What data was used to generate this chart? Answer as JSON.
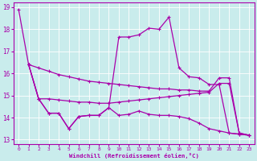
{
  "xlabel": "Windchill (Refroidissement éolien,°C)",
  "xlim": [
    -0.5,
    23.5
  ],
  "ylim": [
    12.8,
    19.2
  ],
  "yticks": [
    13,
    14,
    15,
    16,
    17,
    18,
    19
  ],
  "xticks": [
    0,
    1,
    2,
    3,
    4,
    5,
    6,
    7,
    8,
    9,
    10,
    11,
    12,
    13,
    14,
    15,
    16,
    17,
    18,
    19,
    20,
    21,
    22,
    23
  ],
  "bg_color": "#c9ecec",
  "line_color": "#aa00aa",
  "grid_color": "#ffffff",
  "curve_A_x": [
    0,
    1,
    2,
    3,
    4,
    5,
    6,
    7,
    8,
    9,
    10,
    11,
    12,
    13,
    14,
    15,
    16,
    17,
    18,
    19,
    20,
    21,
    22,
    23
  ],
  "curve_A_y": [
    18.9,
    16.4,
    16.25,
    16.1,
    15.95,
    15.85,
    15.75,
    15.65,
    15.6,
    15.55,
    15.5,
    15.45,
    15.4,
    15.35,
    15.3,
    15.3,
    15.25,
    15.25,
    15.2,
    15.2,
    15.8,
    15.8,
    13.3,
    13.2
  ],
  "curve_B_x": [
    1,
    2,
    3,
    4,
    5,
    6,
    7,
    8,
    9,
    10,
    11,
    12,
    13,
    14,
    15,
    16,
    17,
    18,
    19,
    20,
    21,
    22,
    23
  ],
  "curve_B_y": [
    16.4,
    14.85,
    14.85,
    14.8,
    14.75,
    14.7,
    14.7,
    14.65,
    14.65,
    14.7,
    14.75,
    14.8,
    14.85,
    14.9,
    14.95,
    15.0,
    15.05,
    15.1,
    15.15,
    15.55,
    15.55,
    13.3,
    13.2
  ],
  "curve_C_x": [
    1,
    2,
    3,
    4,
    5,
    6,
    7,
    8,
    9,
    10,
    11,
    12,
    13,
    14,
    15,
    16,
    17,
    18,
    19,
    20,
    21,
    22,
    23
  ],
  "curve_C_y": [
    16.4,
    14.85,
    14.2,
    14.2,
    13.5,
    14.05,
    14.1,
    14.1,
    14.45,
    17.65,
    17.65,
    17.75,
    18.05,
    18.0,
    18.55,
    16.25,
    15.85,
    15.8,
    15.5,
    15.5,
    13.3,
    13.25,
    13.2
  ],
  "curve_D_x": [
    1,
    2,
    3,
    4,
    5,
    6,
    7,
    8,
    9,
    10,
    11,
    12,
    13,
    14,
    15,
    16,
    17,
    18,
    19,
    20,
    21,
    22,
    23
  ],
  "curve_D_y": [
    16.4,
    14.85,
    14.2,
    14.2,
    13.5,
    14.05,
    14.1,
    14.1,
    14.45,
    14.1,
    14.15,
    14.3,
    14.15,
    14.1,
    14.1,
    14.05,
    13.95,
    13.75,
    13.5,
    13.4,
    13.3,
    13.25,
    13.2
  ]
}
